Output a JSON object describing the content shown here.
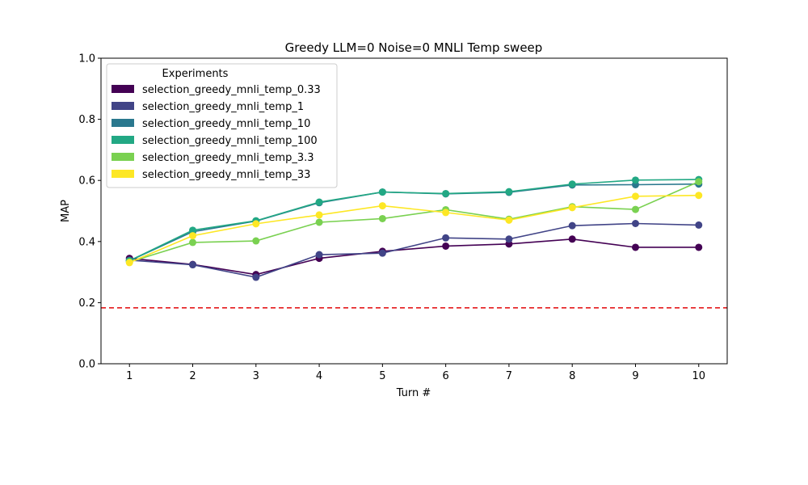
{
  "chart_data": {
    "type": "line",
    "title": "Greedy LLM=0 Noise=0 MNLI Temp sweep",
    "xlabel": "Turn #",
    "ylabel": "MAP",
    "x": [
      1,
      2,
      3,
      4,
      5,
      6,
      7,
      8,
      9,
      10
    ],
    "xticks": [
      "1",
      "2",
      "3",
      "4",
      "5",
      "6",
      "7",
      "8",
      "9",
      "10"
    ],
    "xlim": [
      0.55,
      10.45
    ],
    "ylim": [
      0.0,
      1.0
    ],
    "yticks": [
      "0.0",
      "0.2",
      "0.4",
      "0.6",
      "0.8",
      "1.0"
    ],
    "grid": false,
    "legend": {
      "title": "Experiments",
      "placement": "top-left"
    },
    "reference_line": {
      "y": 0.183,
      "color": "#e41a1c",
      "style": "dashed"
    },
    "series": [
      {
        "name": "selection_greedy_mnli_temp_0.33",
        "color": "#440154",
        "values": [
          0.345,
          0.325,
          0.292,
          0.345,
          0.368,
          0.385,
          0.392,
          0.408,
          0.381,
          0.381
        ]
      },
      {
        "name": "selection_greedy_mnli_temp_1",
        "color": "#414487",
        "values": [
          0.339,
          0.324,
          0.283,
          0.357,
          0.362,
          0.412,
          0.408,
          0.452,
          0.459,
          0.454
        ]
      },
      {
        "name": "selection_greedy_mnli_temp_10",
        "color": "#2a788e",
        "values": [
          0.337,
          0.432,
          0.467,
          0.527,
          0.562,
          0.556,
          0.561,
          0.585,
          0.586,
          0.588
        ]
      },
      {
        "name": "selection_greedy_mnli_temp_100",
        "color": "#22a884",
        "values": [
          0.337,
          0.437,
          0.468,
          0.529,
          0.562,
          0.557,
          0.563,
          0.588,
          0.601,
          0.603
        ]
      },
      {
        "name": "selection_greedy_mnli_temp_3.3",
        "color": "#7ad151",
        "values": [
          0.333,
          0.397,
          0.402,
          0.463,
          0.475,
          0.504,
          0.473,
          0.514,
          0.505,
          0.596
        ]
      },
      {
        "name": "selection_greedy_mnli_temp_33",
        "color": "#fde725",
        "values": [
          0.331,
          0.419,
          0.458,
          0.487,
          0.517,
          0.495,
          0.47,
          0.511,
          0.548,
          0.551
        ]
      }
    ]
  }
}
